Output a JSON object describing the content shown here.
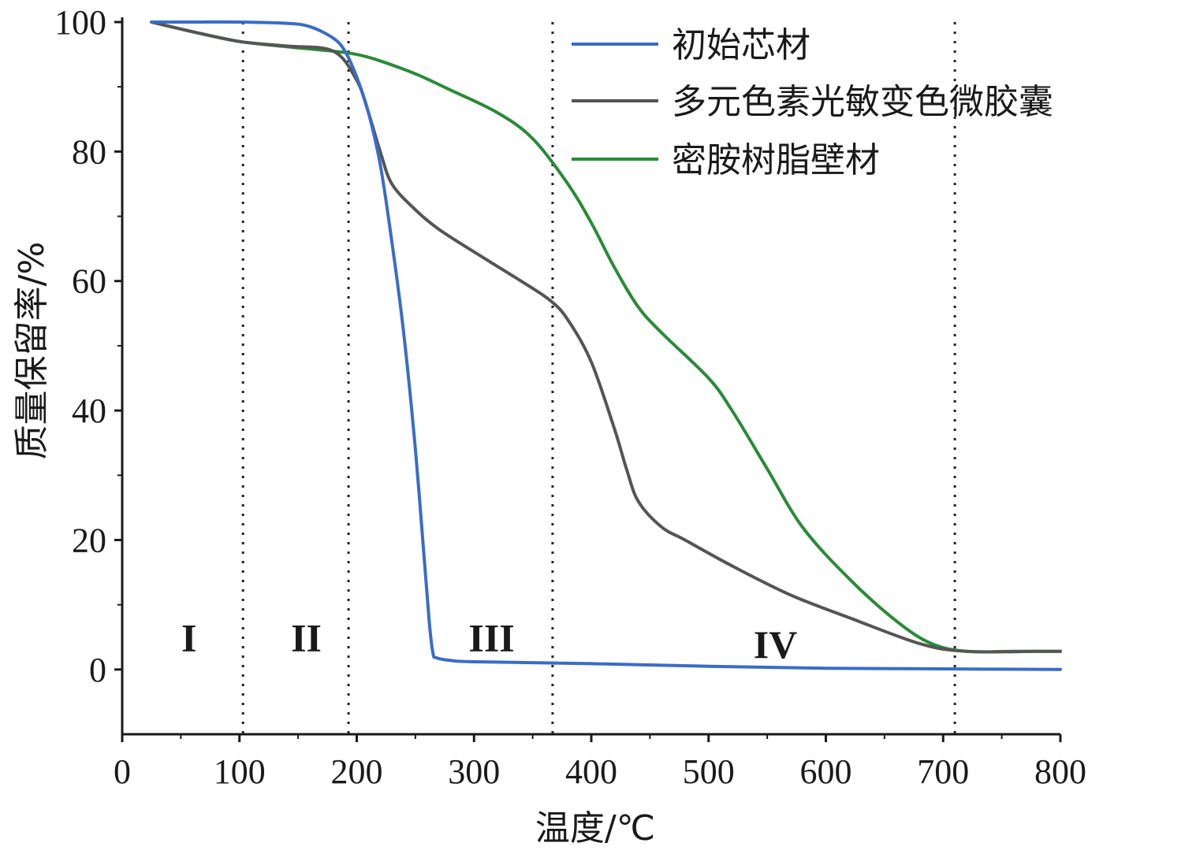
{
  "chart_data": {
    "type": "line",
    "title": "",
    "xlabel": "温度/℃",
    "ylabel": "质量保留率/%",
    "xlim": [
      0,
      800
    ],
    "ylim": [
      -10,
      100
    ],
    "xticks": [
      0,
      100,
      200,
      300,
      400,
      500,
      600,
      700,
      800
    ],
    "yticks": [
      0,
      20,
      40,
      60,
      80,
      100
    ],
    "grid": false,
    "legend": "top-right",
    "series": [
      {
        "name": "初始芯材",
        "color": "#3a6cc8",
        "x": [
          25,
          60,
          100,
          140,
          160,
          180,
          190,
          200,
          210,
          220,
          230,
          240,
          250,
          258,
          262,
          265,
          268,
          280,
          300,
          400,
          500,
          600,
          700,
          800
        ],
        "y": [
          100,
          100,
          100,
          99.8,
          99.3,
          97.5,
          95.5,
          91.5,
          86,
          78,
          66,
          52,
          34,
          16,
          7,
          2.5,
          1.8,
          1.4,
          1.2,
          0.9,
          0.5,
          0.2,
          0.1,
          0
        ]
      },
      {
        "name": "多元色素光敏变色微胶囊",
        "color": "#555555",
        "x": [
          25,
          60,
          100,
          140,
          180,
          200,
          210,
          220,
          230,
          250,
          270,
          300,
          340,
          365,
          380,
          400,
          420,
          430,
          440,
          460,
          480,
          520,
          570,
          620,
          680,
          720,
          780,
          800
        ],
        "y": [
          100,
          98.5,
          97,
          96.3,
          95.5,
          91,
          86,
          80,
          75,
          71,
          68,
          64.5,
          60,
          57,
          54,
          47.5,
          37,
          31,
          26,
          22,
          20,
          16,
          11.5,
          8,
          4,
          2.8,
          2.8,
          2.8
        ]
      },
      {
        "name": "密胺树脂壁材",
        "color": "#2a8a38",
        "x": [
          25,
          60,
          100,
          140,
          180,
          200,
          220,
          250,
          280,
          320,
          350,
          380,
          400,
          420,
          440,
          460,
          500,
          520,
          550,
          580,
          620,
          660,
          690,
          720,
          760,
          800
        ],
        "y": [
          100,
          98.5,
          97,
          96.2,
          95.5,
          95,
          94,
          92,
          89.5,
          86,
          82,
          75,
          69,
          62,
          56,
          52,
          45,
          40,
          31,
          22,
          14,
          7.5,
          4,
          2.8,
          2.8,
          2.8
        ]
      }
    ],
    "reference_lines_x": [
      103,
      193,
      367,
      710
    ],
    "regions": [
      {
        "label": "I",
        "x": 57,
        "y": 5
      },
      {
        "label": "II",
        "x": 157,
        "y": 5
      },
      {
        "label": "III",
        "x": 315,
        "y": 5
      },
      {
        "label": "IV",
        "x": 557,
        "y": 4
      }
    ]
  }
}
